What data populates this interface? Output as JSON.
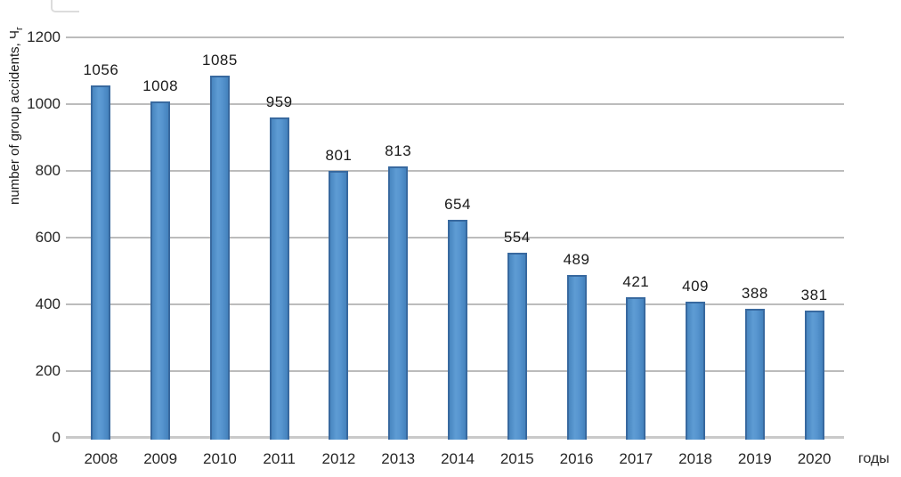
{
  "chart_data": {
    "type": "bar",
    "categories": [
      "2008",
      "2009",
      "2010",
      "2011",
      "2012",
      "2013",
      "2014",
      "2015",
      "2016",
      "2017",
      "2018",
      "2019",
      "2020"
    ],
    "values": [
      1056,
      1008,
      1085,
      959,
      801,
      813,
      654,
      554,
      489,
      421,
      409,
      388,
      381
    ],
    "title": "",
    "xlabel": "годы",
    "ylabel": "number of group accidents, Чг",
    "ylabel_main": "number of group accidents, Ч",
    "ylabel_sub": "г",
    "yticks": [
      0,
      200,
      400,
      600,
      800,
      1000,
      1200
    ],
    "ylim": [
      0,
      1200
    ],
    "grid": true,
    "legend": "none",
    "bar_fill": "#5291cc",
    "bar_border": "#38699f",
    "gridline_color": "#a6a6a6",
    "axisline_color": "#c9c9c9"
  }
}
